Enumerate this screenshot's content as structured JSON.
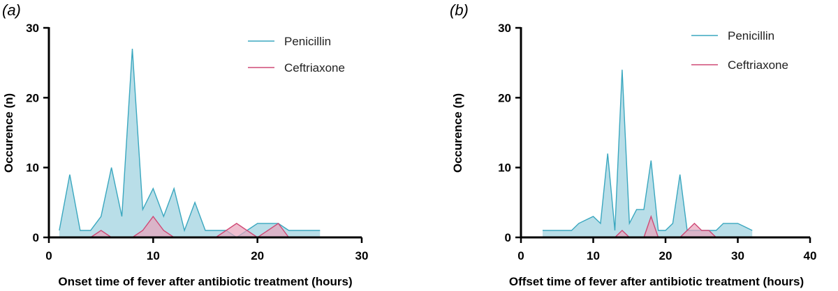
{
  "colors": {
    "penicillin_line": "#3aa7bf",
    "penicillin_fill": "#add8e4",
    "ceftriaxone_line": "#cf4a76",
    "ceftriaxone_fill": "#e8a3bb",
    "axis": "#000000"
  },
  "chart_data": [
    {
      "panel": "(a)",
      "type": "area",
      "xlabel": "Onset time of fever after antibiotic treatment (hours)",
      "ylabel": "Occurence (n)",
      "xlim": [
        0,
        30
      ],
      "ylim": [
        0,
        30
      ],
      "xticks": [
        0,
        10,
        20,
        30
      ],
      "yticks": [
        0,
        10,
        20,
        30
      ],
      "legend_position": "top-right",
      "series": [
        {
          "name": "Penicillin",
          "x": [
            1,
            2,
            3,
            4,
            5,
            6,
            7,
            8,
            9,
            10,
            11,
            12,
            13,
            14,
            15,
            16,
            17,
            18,
            19,
            20,
            21,
            22,
            23,
            24,
            25,
            26
          ],
          "y": [
            1,
            9,
            1,
            1,
            3,
            10,
            3,
            27,
            4,
            7,
            3,
            7,
            1,
            5,
            1,
            1,
            1,
            0,
            1,
            2,
            2,
            2,
            1,
            1,
            1,
            1
          ]
        },
        {
          "name": "Ceftriaxone",
          "x": [
            1,
            2,
            3,
            4,
            5,
            6,
            7,
            8,
            9,
            10,
            11,
            12,
            13,
            14,
            15,
            16,
            17,
            18,
            19,
            20,
            21,
            22,
            23,
            24,
            25,
            26
          ],
          "y": [
            0,
            0,
            0,
            0,
            1,
            0,
            0,
            0,
            1,
            3,
            1,
            0,
            0,
            0,
            0,
            0,
            1,
            2,
            1,
            0,
            1,
            2,
            0,
            0,
            0,
            0
          ]
        }
      ]
    },
    {
      "panel": "(b)",
      "type": "area",
      "xlabel": "Offset time of fever after antibiotic treatment (hours)",
      "ylabel": "Occurence (n)",
      "xlim": [
        0,
        40
      ],
      "ylim": [
        0,
        30
      ],
      "xticks": [
        0,
        10,
        20,
        30,
        40
      ],
      "yticks": [
        0,
        10,
        20,
        30
      ],
      "legend_position": "top-right",
      "series": [
        {
          "name": "Penicillin",
          "x": [
            3,
            4,
            5,
            6,
            7,
            8,
            9,
            10,
            11,
            12,
            13,
            14,
            15,
            16,
            17,
            18,
            19,
            20,
            21,
            22,
            23,
            24,
            25,
            26,
            27,
            28,
            29,
            30,
            31,
            32
          ],
          "y": [
            1,
            1,
            1,
            1,
            1,
            2,
            2.5,
            3,
            2,
            12,
            1,
            24,
            2,
            4,
            4,
            11,
            1,
            1,
            2,
            9,
            1,
            1,
            1,
            1,
            1,
            2,
            2,
            2,
            1.5,
            1
          ]
        },
        {
          "name": "Ceftriaxone",
          "x": [
            3,
            4,
            5,
            6,
            7,
            8,
            9,
            10,
            11,
            12,
            13,
            14,
            15,
            16,
            17,
            18,
            19,
            20,
            21,
            22,
            23,
            24,
            25,
            26,
            27,
            28,
            29,
            30,
            31,
            32
          ],
          "y": [
            0,
            0,
            0,
            0,
            0,
            0,
            0,
            0,
            0,
            0,
            0,
            1,
            0,
            0,
            0,
            3,
            0,
            0,
            0,
            0,
            1,
            2,
            1,
            1,
            0,
            0,
            0,
            0,
            0,
            0
          ]
        }
      ]
    }
  ]
}
